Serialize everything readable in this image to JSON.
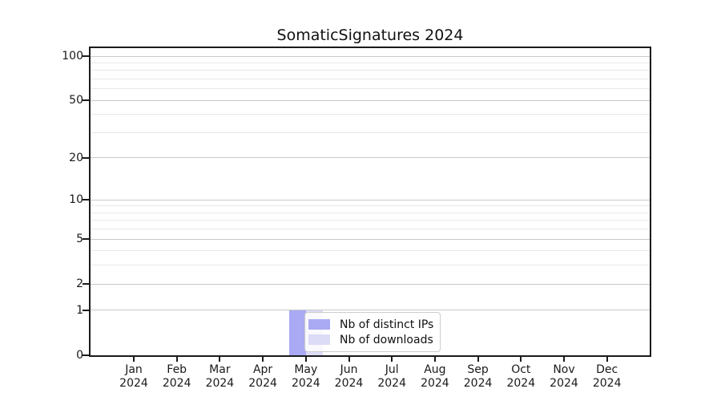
{
  "title": "SomaticSignatures 2024",
  "colors": {
    "ips_bar": "#a9aaf3",
    "downloads_bar": "#dcdcf6",
    "grid_major": "#c9c9c9",
    "grid_minor": "#e9e9e9",
    "axis": "#1b1b1b",
    "legend_border": "#cccccc"
  },
  "legend": {
    "items": [
      {
        "label": "Nb of distinct IPs",
        "color_key": "ips_bar"
      },
      {
        "label": "Nb of downloads",
        "color_key": "downloads_bar"
      }
    ]
  },
  "chart_data": {
    "type": "bar",
    "title": "SomaticSignatures 2024",
    "scale": "log1p",
    "grid": "horizontal",
    "legend_position": "inside-bottom-center",
    "year": "2024",
    "months": [
      "Jan",
      "Feb",
      "Mar",
      "Apr",
      "May",
      "Jun",
      "Jul",
      "Aug",
      "Sep",
      "Oct",
      "Nov",
      "Dec"
    ],
    "categories": [
      "Jan 2024",
      "Feb 2024",
      "Mar 2024",
      "Apr 2024",
      "May 2024",
      "Jun 2024",
      "Jul 2024",
      "Aug 2024",
      "Sep 2024",
      "Oct 2024",
      "Nov 2024",
      "Dec 2024"
    ],
    "series": [
      {
        "name": "Nb of distinct IPs",
        "color_key": "ips_bar",
        "values": [
          0,
          0,
          0,
          0,
          1,
          0,
          0,
          0,
          0,
          0,
          0,
          0
        ]
      },
      {
        "name": "Nb of downloads",
        "color_key": "downloads_bar",
        "values": [
          0,
          0,
          0,
          0,
          1,
          0,
          0,
          0,
          0,
          0,
          0,
          0
        ]
      }
    ],
    "y_major_ticks": [
      0,
      1,
      2,
      5,
      10,
      20,
      50,
      100
    ],
    "y_minor_ticks": [
      3,
      4,
      6,
      7,
      8,
      9,
      30,
      40,
      60,
      70,
      80,
      90
    ],
    "ylim": [
      0,
      114
    ],
    "xlabel": "",
    "ylabel": ""
  }
}
